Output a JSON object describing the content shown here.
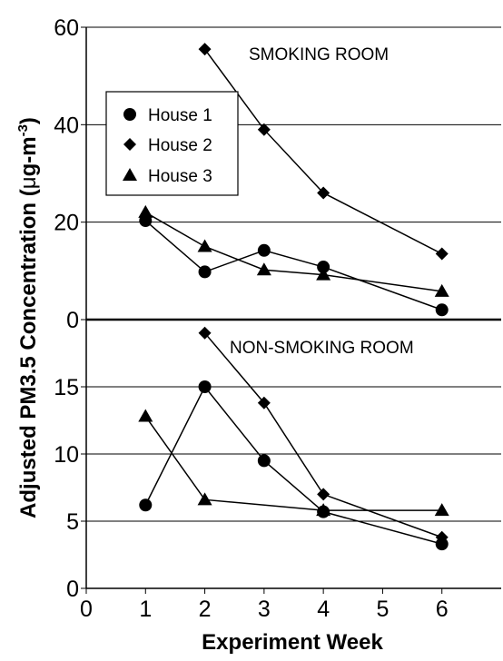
{
  "chart_data": [
    {
      "type": "line",
      "panel": "upper",
      "title": "",
      "annotation": "SMOKING ROOM",
      "xlabel": "Experiment Week",
      "ylabel": "Adjusted PM3.5 Concentration (µg-m-3)",
      "xlim": [
        0,
        7
      ],
      "ylim": [
        0,
        60
      ],
      "yticks": [
        0,
        20,
        40,
        60
      ],
      "grid": "horizontal",
      "legend": {
        "placement": "left",
        "entries": [
          "House 1",
          "House 2",
          "House 3"
        ]
      },
      "series": [
        {
          "name": "House 1",
          "marker": "circle",
          "x": [
            1,
            2,
            3,
            4,
            6
          ],
          "y": [
            20.3,
            9.8,
            14.2,
            10.8,
            2.0
          ]
        },
        {
          "name": "House 2",
          "marker": "diamond",
          "x": [
            2,
            3,
            4,
            6
          ],
          "y": [
            55.5,
            39.0,
            26.0,
            13.5
          ]
        },
        {
          "name": "House 3",
          "marker": "triangle",
          "x": [
            1,
            2,
            3,
            4,
            6
          ],
          "y": [
            22.0,
            15.0,
            10.2,
            9.2,
            5.8
          ]
        }
      ]
    },
    {
      "type": "line",
      "panel": "lower",
      "title": "",
      "annotation": "NON-SMOKING ROOM",
      "xlabel": "Experiment Week",
      "ylabel": "Adjusted PM3.5 Concentration (µg-m-3)",
      "xlim": [
        0,
        7
      ],
      "ylim": [
        0,
        20
      ],
      "yticks": [
        0,
        5,
        10,
        15
      ],
      "xticks": [
        0,
        1,
        2,
        3,
        4,
        5,
        6
      ],
      "grid": "horizontal",
      "series": [
        {
          "name": "House 1",
          "marker": "circle",
          "x": [
            1,
            2,
            3,
            4,
            6
          ],
          "y": [
            6.2,
            15.0,
            9.5,
            5.7,
            3.3
          ]
        },
        {
          "name": "House 2",
          "marker": "diamond",
          "x": [
            2,
            3,
            4,
            6
          ],
          "y": [
            19.0,
            13.8,
            7.0,
            3.8
          ]
        },
        {
          "name": "House 3",
          "marker": "triangle",
          "x": [
            1,
            2,
            4,
            6
          ],
          "y": [
            12.8,
            6.6,
            5.8,
            5.8
          ]
        }
      ]
    }
  ],
  "labels": {
    "ylabel_main": "Adjusted PM3.5 Concentration (",
    "ylabel_mu": "μ",
    "ylabel_unit": "g-m",
    "ylabel_sup": "-3",
    "ylabel_close": ")",
    "xlabel": "Experiment Week"
  }
}
